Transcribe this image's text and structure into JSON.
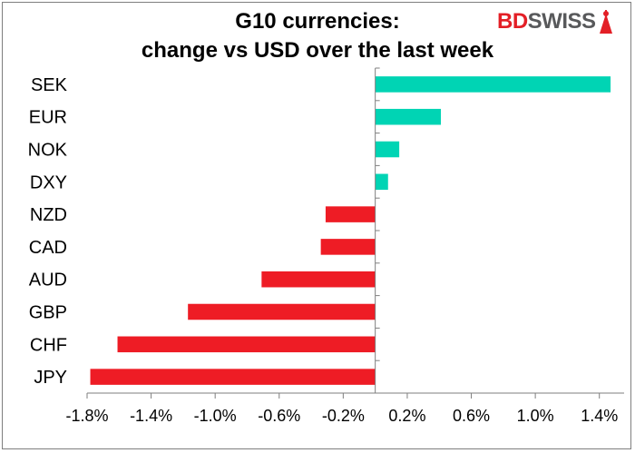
{
  "title_line1": "G10 currencies:",
  "title_line2": "change vs USD over the last week",
  "logo": {
    "part1": "BD",
    "part2": "SWISS",
    "icon": "lamp-icon"
  },
  "colors": {
    "positive": "#00d4b4",
    "negative": "#ee1c25",
    "axis": "#7f7f7f"
  },
  "chart_data": {
    "type": "bar",
    "orientation": "horizontal",
    "categories": [
      "SEK",
      "EUR",
      "NOK",
      "DXY",
      "NZD",
      "CAD",
      "AUD",
      "GBP",
      "CHF",
      "JPY"
    ],
    "values": [
      1.47,
      0.41,
      0.15,
      0.08,
      -0.31,
      -0.34,
      -0.71,
      -1.17,
      -1.61,
      -1.78
    ],
    "xlim": [
      -1.8,
      1.6
    ],
    "x_ticks": [
      -1.8,
      -1.4,
      -1.0,
      -0.6,
      -0.2,
      0.2,
      0.6,
      1.0,
      1.4
    ],
    "x_tick_labels": [
      "-1.8%",
      "-1.4%",
      "-1.0%",
      "-0.6%",
      "-0.2%",
      "0.2%",
      "0.6%",
      "1.0%",
      "1.4%"
    ],
    "grid": false,
    "legend": "none"
  }
}
